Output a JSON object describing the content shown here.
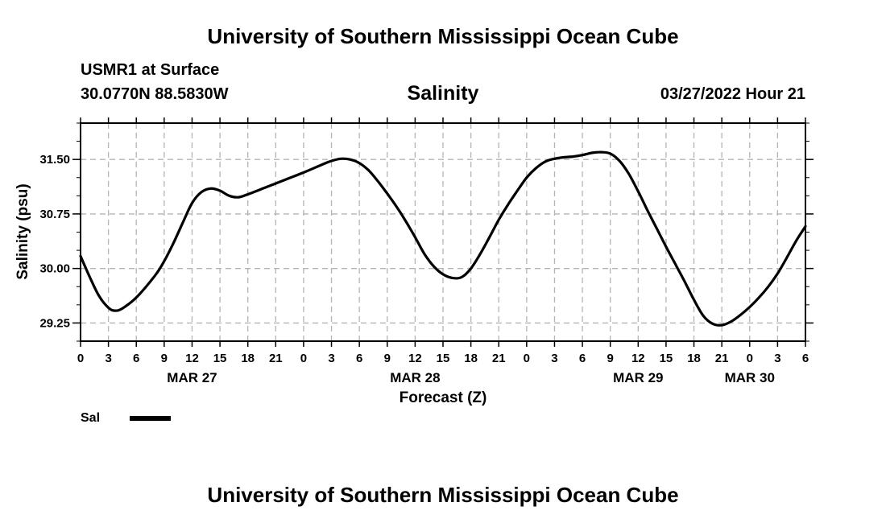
{
  "header": {
    "top_title": "University of Southern Mississippi Ocean Cube",
    "station_name": "USMR1 at Surface",
    "station_coords": "30.0770N  88.5830W",
    "chart_title": "Salinity",
    "timestamp": "03/27/2022 Hour 21"
  },
  "footer": {
    "bottom_title": "University of Southern Mississippi Ocean Cube"
  },
  "legend": {
    "label": "Sal",
    "color": "#000000"
  },
  "chart_data": {
    "type": "line",
    "title": "Salinity",
    "xlabel": "Forecast (Z)",
    "ylabel": "Salinity (psu)",
    "ylim": [
      29.0,
      32.0
    ],
    "xlim_hours": [
      0,
      78
    ],
    "grid": true,
    "legend_placement": "bottom-left",
    "y_ticks": [
      {
        "value": 29.25,
        "label": "29.25"
      },
      {
        "value": 30.0,
        "label": "30.00"
      },
      {
        "value": 30.75,
        "label": "30.75"
      },
      {
        "value": 31.5,
        "label": "31.50"
      }
    ],
    "x_ticks": [
      {
        "hour": 0,
        "label": "0"
      },
      {
        "hour": 3,
        "label": "3"
      },
      {
        "hour": 6,
        "label": "6"
      },
      {
        "hour": 9,
        "label": "9"
      },
      {
        "hour": 12,
        "label": "12"
      },
      {
        "hour": 15,
        "label": "15"
      },
      {
        "hour": 18,
        "label": "18"
      },
      {
        "hour": 21,
        "label": "21"
      },
      {
        "hour": 24,
        "label": "0"
      },
      {
        "hour": 27,
        "label": "3"
      },
      {
        "hour": 30,
        "label": "6"
      },
      {
        "hour": 33,
        "label": "9"
      },
      {
        "hour": 36,
        "label": "12"
      },
      {
        "hour": 39,
        "label": "15"
      },
      {
        "hour": 42,
        "label": "18"
      },
      {
        "hour": 45,
        "label": "21"
      },
      {
        "hour": 48,
        "label": "0"
      },
      {
        "hour": 51,
        "label": "3"
      },
      {
        "hour": 54,
        "label": "6"
      },
      {
        "hour": 57,
        "label": "9"
      },
      {
        "hour": 60,
        "label": "12"
      },
      {
        "hour": 63,
        "label": "15"
      },
      {
        "hour": 66,
        "label": "18"
      },
      {
        "hour": 69,
        "label": "21"
      },
      {
        "hour": 72,
        "label": "0"
      },
      {
        "hour": 75,
        "label": "3"
      },
      {
        "hour": 78,
        "label": "6"
      }
    ],
    "date_labels": [
      {
        "hour": 12,
        "label": "MAR 27"
      },
      {
        "hour": 36,
        "label": "MAR 28"
      },
      {
        "hour": 60,
        "label": "MAR 29"
      },
      {
        "hour": 72,
        "label": "MAR 30"
      }
    ],
    "series": [
      {
        "name": "Sal",
        "x": [
          0,
          1,
          2,
          3,
          3.7,
          4.5,
          6,
          8,
          9,
          10,
          11,
          12,
          13,
          14,
          15,
          16,
          17,
          18,
          20,
          22,
          24,
          26,
          27,
          28,
          29,
          30,
          31,
          32,
          33,
          34,
          35,
          36,
          37,
          38,
          39,
          40,
          41,
          42,
          43,
          44,
          45,
          46,
          47,
          48,
          49,
          50,
          51,
          52,
          53,
          54,
          55,
          56,
          57,
          58,
          59,
          60,
          61,
          62,
          63,
          64,
          65,
          66,
          67,
          68,
          69,
          70,
          71,
          72,
          73,
          74,
          75,
          76,
          77,
          78
        ],
        "y": [
          30.17,
          29.88,
          29.62,
          29.46,
          29.42,
          29.45,
          29.6,
          29.9,
          30.1,
          30.35,
          30.63,
          30.9,
          31.05,
          31.1,
          31.07,
          31.0,
          30.98,
          31.02,
          31.12,
          31.22,
          31.32,
          31.43,
          31.48,
          31.51,
          31.5,
          31.45,
          31.35,
          31.2,
          31.03,
          30.85,
          30.65,
          30.43,
          30.2,
          30.03,
          29.92,
          29.87,
          29.88,
          30.0,
          30.2,
          30.43,
          30.67,
          30.88,
          31.07,
          31.25,
          31.38,
          31.47,
          31.51,
          31.53,
          31.54,
          31.56,
          31.59,
          31.6,
          31.58,
          31.48,
          31.3,
          31.06,
          30.8,
          30.55,
          30.3,
          30.06,
          29.82,
          29.57,
          29.35,
          29.24,
          29.22,
          29.27,
          29.36,
          29.47,
          29.6,
          29.75,
          29.93,
          30.15,
          30.38,
          30.58
        ]
      }
    ]
  }
}
